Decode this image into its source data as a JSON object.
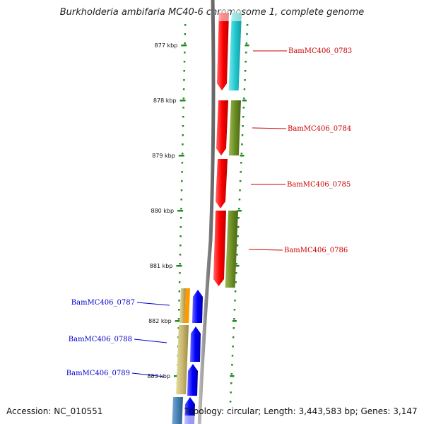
{
  "title": "Burkholderia ambifaria MC40-6 chromosome 1, complete genome",
  "footer": {
    "accession": "Accession: NC_010551",
    "summary": "Topology: circular; Length: 3,443,583 bp; Genes: 3,147"
  },
  "ruler": {
    "tick_labels": [
      "877 kbp",
      "878 kbp",
      "879 kbp",
      "880 kbp",
      "881 kbp",
      "882 kbp",
      "883 kbp"
    ]
  },
  "genes": [
    {
      "locus_tag": "BamMC406_0783",
      "strand": "+",
      "label_color": "#cc0000"
    },
    {
      "locus_tag": "BamMC406_0784",
      "strand": "+",
      "label_color": "#cc0000"
    },
    {
      "locus_tag": "BamMC406_0785",
      "strand": "+",
      "label_color": "#cc0000"
    },
    {
      "locus_tag": "BamMC406_0786",
      "strand": "+",
      "label_color": "#cc0000"
    },
    {
      "locus_tag": "BamMC406_0787",
      "strand": "-",
      "label_color": "#0000cc"
    },
    {
      "locus_tag": "BamMC406_0788",
      "strand": "-",
      "label_color": "#0000cc"
    },
    {
      "locus_tag": "BamMC406_0789",
      "strand": "-",
      "label_color": "#0000cc"
    }
  ],
  "colors": {
    "forward_gene": "#ff0000",
    "reverse_gene": "#0000ff",
    "forward_label": "#cc0000",
    "reverse_label": "#0000cc",
    "tick": "#228b22",
    "backbone": "#888888",
    "cog_cyan": "#22c8d0",
    "cog_olive": "#6b8e23",
    "cog_khaki": "#c8b870",
    "cog_orange": "#ff9900",
    "cog_steel": "#4682b4"
  }
}
